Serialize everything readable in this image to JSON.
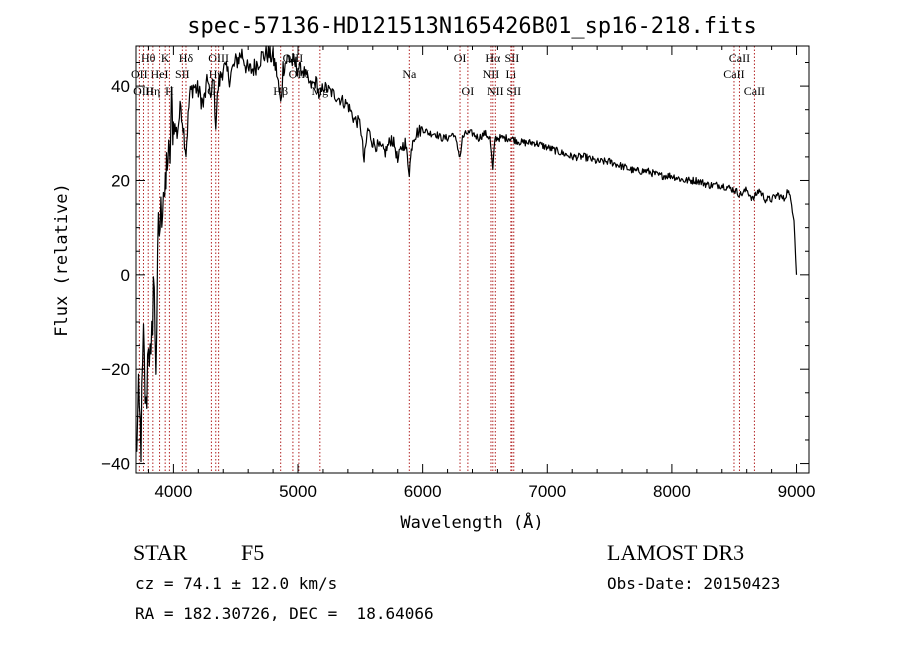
{
  "chart_data": {
    "type": "line",
    "title": "spec-57136-HD121513N165426B01_sp16-218.fits",
    "xlabel": "Wavelength (Å)",
    "ylabel": "Flux (relative)",
    "xlim": [
      3700,
      9100
    ],
    "ylim": [
      -42,
      48.5
    ],
    "xticks": [
      4000,
      5000,
      6000,
      7000,
      8000,
      9000
    ],
    "yticks": [
      -40,
      -20,
      0,
      20,
      40
    ],
    "series": [
      {
        "name": "flux",
        "color": "#000000",
        "x": [
          3700,
          3720,
          3740,
          3760,
          3780,
          3800,
          3820,
          3840,
          3860,
          3880,
          3900,
          3920,
          3935,
          3950,
          3968,
          3985,
          4000,
          4030,
          4060,
          4101,
          4130,
          4160,
          4200,
          4240,
          4280,
          4300,
          4320,
          4340,
          4360,
          4400,
          4450,
          4500,
          4550,
          4600,
          4650,
          4700,
          4750,
          4800,
          4830,
          4861,
          4880,
          4920,
          4960,
          5000,
          5050,
          5100,
          5150,
          5172,
          5200,
          5250,
          5300,
          5350,
          5400,
          5450,
          5500,
          5530,
          5560,
          5600,
          5650,
          5700,
          5750,
          5780,
          5800,
          5830,
          5860,
          5893,
          5920,
          5950,
          6000,
          6050,
          6100,
          6150,
          6200,
          6250,
          6300,
          6320,
          6350,
          6400,
          6450,
          6500,
          6540,
          6563,
          6580,
          6620,
          6700,
          6800,
          6900,
          7000,
          7100,
          7200,
          7300,
          7400,
          7500,
          7600,
          7700,
          7800,
          7900,
          8000,
          8100,
          8200,
          8300,
          8400,
          8500,
          8550,
          8600,
          8650,
          8700,
          8750,
          8800,
          8850,
          8900,
          8930,
          8960,
          8980,
          9000
        ],
        "values": [
          -38,
          -28,
          -35,
          -15,
          -30,
          -12,
          -22,
          0,
          -18,
          8,
          12,
          20,
          15,
          26,
          22,
          35,
          32,
          30,
          36,
          26,
          38,
          40,
          39,
          36,
          42,
          36,
          43,
          32,
          40,
          44,
          42,
          45,
          47,
          43,
          44,
          46,
          47,
          46,
          43,
          36,
          44,
          46,
          45,
          44,
          43,
          40,
          41,
          37,
          40,
          39,
          38,
          37,
          36,
          33,
          32,
          24,
          31,
          28,
          27,
          26,
          29,
          27,
          24,
          27,
          28,
          22,
          29,
          30,
          31,
          30,
          30,
          29,
          29,
          30,
          25,
          29,
          30,
          30,
          29,
          30,
          29,
          22,
          29,
          29,
          29,
          28,
          28,
          27,
          26,
          25,
          25,
          24,
          24,
          23,
          22,
          22,
          21,
          21,
          20,
          20,
          19,
          19,
          18,
          17,
          18,
          16,
          18,
          16,
          16,
          17,
          16,
          18,
          15,
          12,
          0
        ]
      }
    ],
    "line_markers": {
      "color": "#b22222",
      "style": "dotted",
      "lines": [
        {
          "label": "Hθ",
          "x": 3798,
          "row": 1
        },
        {
          "label": "OII",
          "x": 3727,
          "row": 2
        },
        {
          "label": "OIII",
          "x": 3760,
          "row": 3
        },
        {
          "label": "K",
          "x": 3934,
          "row": 1
        },
        {
          "label": "HeI",
          "x": 3889,
          "row": 2
        },
        {
          "label": "Hη",
          "x": 3835,
          "row": 3
        },
        {
          "label": "Hδ",
          "x": 4101,
          "row": 1
        },
        {
          "label": "SII",
          "x": 4072,
          "row": 2
        },
        {
          "label": "H",
          "x": 3968,
          "row": 3
        },
        {
          "label": "OIII",
          "x": 4363,
          "row": 1
        },
        {
          "label": "Hγ",
          "x": 4340,
          "row": 2
        },
        {
          "label": "G",
          "x": 4305,
          "row": 3
        },
        {
          "label": "OIII",
          "x": 4959,
          "row": 1
        },
        {
          "label": "OIII",
          "x": 5007,
          "row": 2
        },
        {
          "label": "Hβ",
          "x": 4861,
          "row": 3
        },
        {
          "label": "Mg",
          "x": 5175,
          "row": 3
        },
        {
          "label": "Na",
          "x": 5893,
          "row": 2
        },
        {
          "label": "OI",
          "x": 6300,
          "row": 1
        },
        {
          "label": "OI",
          "x": 6363,
          "row": 3
        },
        {
          "label": "Hα",
          "x": 6563,
          "row": 1
        },
        {
          "label": "NII",
          "x": 6548,
          "row": 2
        },
        {
          "label": "NII",
          "x": 6583,
          "row": 3
        },
        {
          "label": "SII",
          "x": 6716,
          "row": 1
        },
        {
          "label": "Li",
          "x": 6708,
          "row": 2
        },
        {
          "label": "SII",
          "x": 6731,
          "row": 3
        },
        {
          "label": "CaII",
          "x": 8542,
          "row": 1
        },
        {
          "label": "CaII",
          "x": 8498,
          "row": 2
        },
        {
          "label": "CaII",
          "x": 8662,
          "row": 3
        }
      ]
    }
  },
  "info": {
    "object_class": "STAR",
    "subclass": "F5",
    "survey": "LAMOST DR3",
    "redshift_text": "cz = 74.1 ± 12.0 km/s",
    "obs_date_text": "Obs-Date: 20150423",
    "coords_text": "RA = 182.30726, DEC =  18.64066"
  }
}
